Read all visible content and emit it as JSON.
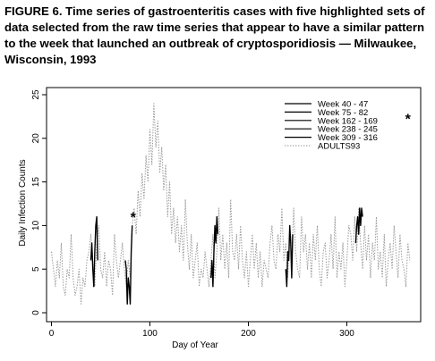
{
  "figure_caption": "FIGURE 6. Time series of gastroenteritis cases with five highlighted sets of data selected from the raw time series that appear to have a similar pattern to the week that launched an outbreak of cryptosporidiosis — Milwaukee, Wisconsin, 1993",
  "chart_data": {
    "type": "line",
    "xlabel": "Day of Year",
    "ylabel": "Daily Infection Counts",
    "xlim": [
      -5,
      375
    ],
    "ylim": [
      0,
      25
    ],
    "xticks": [
      0,
      100,
      200,
      300
    ],
    "yticks": [
      0,
      5,
      10,
      15,
      20,
      25
    ],
    "legend_position": "top-right",
    "grid": false,
    "colors": {
      "highlight": "#000000",
      "background_series": "#9a9a9a"
    },
    "series": [
      {
        "name": "ADULTS93",
        "style": "dotted",
        "x": [
          0,
          2,
          4,
          6,
          8,
          10,
          12,
          14,
          16,
          18,
          20,
          22,
          24,
          26,
          28,
          30,
          32,
          34,
          36,
          38,
          40,
          42,
          44,
          46,
          48,
          50,
          52,
          54,
          56,
          58,
          60,
          62,
          64,
          66,
          68,
          70,
          72,
          74,
          76,
          78,
          80,
          82,
          84,
          86,
          88,
          90,
          92,
          94,
          96,
          98,
          100,
          102,
          104,
          106,
          108,
          110,
          112,
          114,
          116,
          118,
          120,
          122,
          124,
          126,
          128,
          130,
          132,
          134,
          136,
          138,
          140,
          142,
          144,
          146,
          148,
          150,
          152,
          154,
          156,
          158,
          160,
          162,
          164,
          166,
          168,
          170,
          172,
          174,
          176,
          178,
          180,
          182,
          184,
          186,
          188,
          190,
          192,
          194,
          196,
          198,
          200,
          202,
          204,
          206,
          208,
          210,
          212,
          214,
          216,
          218,
          220,
          222,
          224,
          226,
          228,
          230,
          232,
          234,
          236,
          238,
          240,
          242,
          244,
          246,
          248,
          250,
          252,
          254,
          256,
          258,
          260,
          262,
          264,
          266,
          268,
          270,
          272,
          274,
          276,
          278,
          280,
          282,
          284,
          286,
          288,
          290,
          292,
          294,
          296,
          298,
          300,
          302,
          304,
          306,
          308,
          310,
          312,
          314,
          316,
          318,
          320,
          322,
          324,
          326,
          328,
          330,
          332,
          334,
          336,
          338,
          340,
          342,
          344,
          346,
          348,
          350,
          352,
          354,
          356,
          358,
          360,
          362,
          364
        ],
        "y": [
          7,
          5,
          3,
          6,
          4,
          8,
          3,
          2,
          5,
          4,
          9,
          4,
          2,
          3,
          5,
          1,
          4,
          3,
          6,
          7,
          9,
          6,
          3,
          8,
          10,
          5,
          4,
          7,
          3,
          6,
          5,
          2,
          9,
          6,
          4,
          6,
          8,
          5,
          3,
          6,
          4,
          10,
          12,
          9,
          14,
          11,
          16,
          13,
          18,
          15,
          21,
          17,
          24,
          19,
          22,
          16,
          19,
          14,
          17,
          11,
          15,
          9,
          12,
          8,
          11,
          7,
          10,
          6,
          13,
          8,
          5,
          9,
          4,
          6,
          8,
          3,
          5,
          4,
          7,
          5,
          3,
          6,
          9,
          4,
          7,
          12,
          6,
          9,
          5,
          8,
          4,
          13,
          7,
          6,
          9,
          5,
          10,
          6,
          4,
          7,
          3,
          6,
          9,
          5,
          8,
          4,
          7,
          3,
          6,
          5,
          4,
          8,
          10,
          6,
          5,
          9,
          7,
          12,
          6,
          8,
          4,
          9,
          6,
          12,
          7,
          5,
          4,
          11,
          7,
          9,
          5,
          8,
          4,
          9,
          6,
          10,
          5,
          3,
          7,
          8,
          4,
          6,
          9,
          5,
          11,
          4,
          7,
          5,
          8,
          3,
          6,
          10,
          9,
          6,
          11,
          7,
          12,
          8,
          5,
          10,
          6,
          9,
          4,
          8,
          6,
          11,
          5,
          7,
          4,
          9,
          3,
          6,
          8,
          5,
          10,
          7,
          4,
          9,
          6,
          5,
          3,
          8,
          6
        ]
      },
      {
        "name": "Week 40 - 47",
        "style": "solid",
        "x": [
          40,
          41,
          42,
          43,
          44,
          45,
          46,
          47
        ],
        "y": [
          6,
          8,
          5,
          3,
          7,
          10,
          11,
          6
        ]
      },
      {
        "name": "Week 75 - 82",
        "style": "solid",
        "x": [
          75,
          76,
          77,
          78,
          79,
          80,
          81,
          82
        ],
        "y": [
          6,
          5,
          1,
          4,
          3,
          1,
          7,
          10
        ]
      },
      {
        "name": "Week 162 - 169",
        "style": "solid",
        "x": [
          162,
          163,
          164,
          165,
          166,
          167,
          168,
          169
        ],
        "y": [
          4,
          6,
          3,
          7,
          10,
          8,
          11,
          9
        ]
      },
      {
        "name": "Week 238 - 245",
        "style": "solid",
        "x": [
          238,
          239,
          240,
          241,
          242,
          243,
          244,
          245
        ],
        "y": [
          5,
          3,
          7,
          6,
          10,
          8,
          4,
          9
        ]
      },
      {
        "name": "Week 309 - 316",
        "style": "solid",
        "x": [
          309,
          310,
          311,
          312,
          313,
          314,
          315,
          316
        ],
        "y": [
          8,
          10,
          11,
          9,
          12,
          10,
          12,
          11
        ]
      }
    ],
    "annotations": [
      {
        "text": "*",
        "x": 83,
        "y": 11
      },
      {
        "text": "*",
        "x": 362,
        "y": 22.3
      }
    ]
  }
}
